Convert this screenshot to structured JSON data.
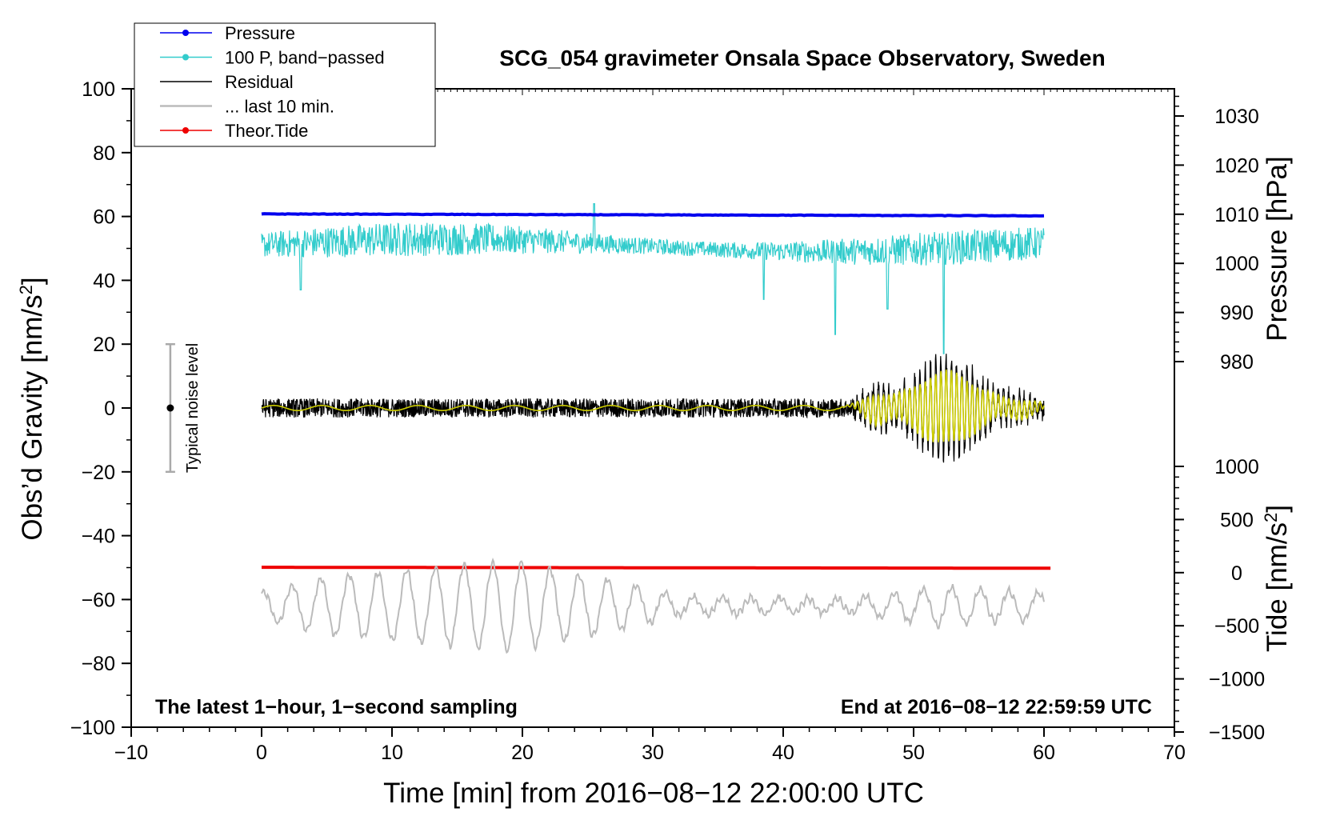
{
  "chart_data": {
    "type": "line",
    "title": "SCG_054 gravimeter Onsala Space Observatory, Sweden",
    "xlabel": "Time [min] from 2016−08−12 22:00:00 UTC",
    "ylabel": "Obs’d Gravity [nm/s²]",
    "y2label": "Pressure [hPa]",
    "y3label": "Tide [nm/s²]",
    "xlim": [
      -10,
      70
    ],
    "ylim": [
      -100,
      100
    ],
    "x_ticks": [
      "−10",
      "0",
      "10",
      "20",
      "30",
      "40",
      "50",
      "60",
      "70"
    ],
    "y_ticks": [
      "−100",
      "−80",
      "−60",
      "−40",
      "−20",
      "0",
      "20",
      "40",
      "60",
      "80",
      "100"
    ],
    "pressure_axis": {
      "range": [
        980,
        1030
      ],
      "ticks": [
        "980",
        "990",
        "1000",
        "1010",
        "1020",
        "1030"
      ]
    },
    "tide_axis": {
      "range": [
        -1500,
        1000
      ],
      "ticks": [
        "−1500",
        "−1000",
        "−500",
        "0",
        "500",
        "1000"
      ]
    },
    "legend": [
      {
        "label": "Pressure",
        "color": "#0000ee",
        "marker": true
      },
      {
        "label": "100 P, band−passed",
        "color": "#33cccc",
        "marker": true
      },
      {
        "label": "Residual",
        "color": "#000000",
        "marker": false
      },
      {
        "label": "... last 10 min.",
        "color": "#bbbbbb",
        "marker": false
      },
      {
        "label": "Theor.Tide",
        "color": "#ee0000",
        "marker": true
      }
    ],
    "series": [
      {
        "name": "Pressure",
        "axis": "gravity_equiv",
        "color": "#0000ee",
        "x_range": [
          0,
          60
        ],
        "start": 60.8,
        "end": 60.2
      },
      {
        "name": "100 P, band−passed",
        "axis": "gravity",
        "color": "#33cccc",
        "x_range": [
          0,
          60
        ],
        "center": 51,
        "amplitude_min": 4,
        "amplitude_max": 9,
        "spikes": [
          {
            "x": 3,
            "y": 37
          },
          {
            "x": 25.5,
            "y": 64
          },
          {
            "x": 38.5,
            "y": 34
          },
          {
            "x": 44,
            "y": 23
          },
          {
            "x": 52.3,
            "y": 17
          },
          {
            "x": 48,
            "y": 31
          }
        ]
      },
      {
        "name": "Residual",
        "axis": "gravity",
        "color": "#000000",
        "x_range": [
          0,
          60
        ],
        "baseline_amplitude": 3,
        "wave_packet": {
          "center": 52.5,
          "width": 3.5,
          "amplitude": 15,
          "period_min": 0.4
        }
      },
      {
        "name": "Residual (filtered)",
        "axis": "gravity",
        "color": "#cccc00",
        "x_range": [
          0,
          60
        ]
      },
      {
        "name": "... last 10 min.",
        "axis": "gravity",
        "color": "#bbbbbb",
        "x_range": [
          0,
          60
        ],
        "center": -62,
        "period_min": 2.2,
        "amplitude_profile": [
          {
            "x": 0,
            "a": 4
          },
          {
            "x": 5,
            "a": 9
          },
          {
            "x": 19,
            "a": 14
          },
          {
            "x": 27,
            "a": 8
          },
          {
            "x": 32,
            "a": 3
          },
          {
            "x": 45,
            "a": 2
          },
          {
            "x": 52,
            "a": 6
          },
          {
            "x": 60,
            "a": 4
          }
        ]
      },
      {
        "name": "Theor.Tide",
        "axis": "gravity",
        "color": "#ee0000",
        "x_range": [
          0,
          60.5
        ],
        "start": -49.9,
        "end": -50.2
      }
    ],
    "noise_level": {
      "label": "Typical noise level",
      "x": -7,
      "center": 0,
      "half_range": 20
    },
    "footer_left": "The latest 1−hour, 1−second sampling",
    "footer_right": "End at 2016−08−12 22:59:59 UTC"
  }
}
